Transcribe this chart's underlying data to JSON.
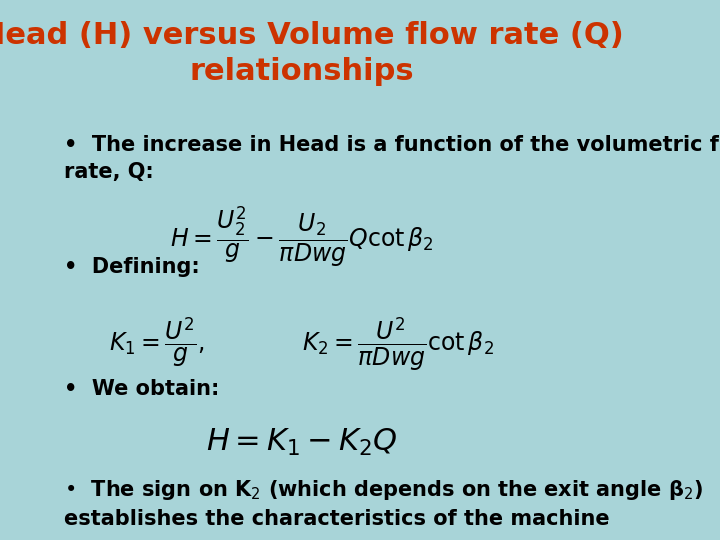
{
  "background_color": "#a8d4d8",
  "title_line1": "Head (H) versus Volume flow rate (Q)",
  "title_line2": "relationships",
  "title_color": "#cc3300",
  "title_fontsize": 22,
  "body_fontsize": 15,
  "body_color": "#000000",
  "bullet1_text": "The increase in Head is a function of the volumetric flow\nrate, Q:",
  "bullet2_text": "Defining:",
  "bullet3_text": "We obtain:",
  "bullet4_line1": "The sign on K",
  "bullet4_line2": " (which depends on the exit angle β",
  "bullet4_line3": ")\nestablishes the characteristics of the machine"
}
